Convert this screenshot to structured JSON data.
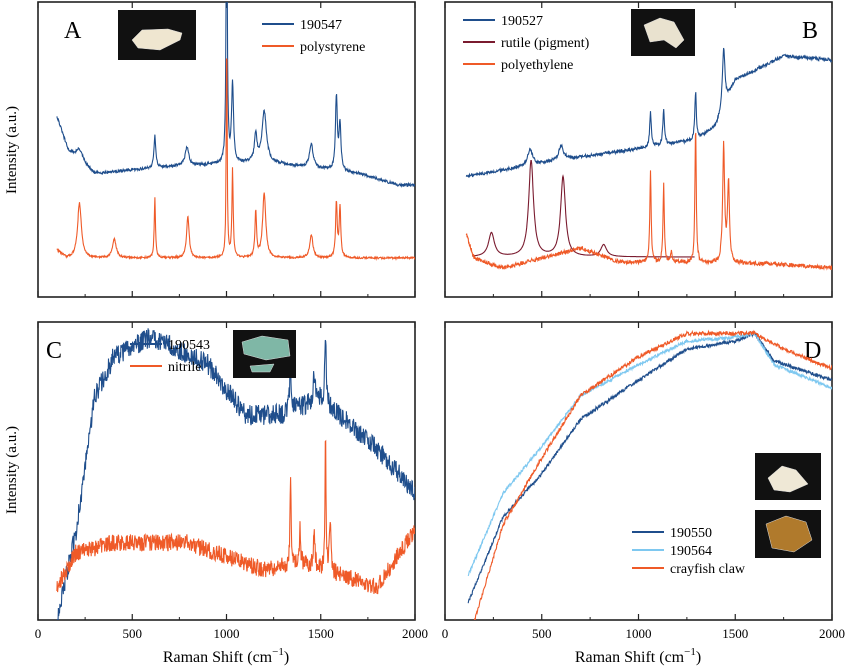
{
  "figure": {
    "shared_xlabel": "Raman Shift (cm",
    "shared_xlabel_sup": "−1",
    "shared_xlabel_end": ")",
    "shared_ylabel": "Intensity (a.u.)"
  },
  "chart_data": [
    {
      "type": "line",
      "panel": "A",
      "xlim": [
        0,
        2000
      ],
      "xticks": [
        0,
        500,
        1000,
        1500,
        2000
      ],
      "legend_position": "top-right",
      "inset_image": "white fragment photo",
      "series": [
        {
          "name": "190547",
          "color": "#1f4e8c",
          "baseline": 0.44,
          "bg": [
            [
              0,
              0.6
            ],
            [
              30,
              0.5
            ],
            [
              80,
              0.35
            ],
            [
              160,
              0.15
            ],
            [
              300,
              0.05
            ],
            [
              700,
              0.08
            ],
            [
              1200,
              0.1
            ],
            [
              1700,
              0.05
            ],
            [
              1910,
              0
            ]
          ],
          "peaks": [
            [
              220,
              0.05,
              20
            ],
            [
              620,
              0.14,
              6
            ],
            [
              790,
              0.08,
              12
            ],
            [
              1001,
              1.15,
              4
            ],
            [
              1032,
              0.35,
              6
            ],
            [
              1155,
              0.12,
              8
            ],
            [
              1200,
              0.22,
              14
            ],
            [
              1450,
              0.1,
              12
            ],
            [
              1583,
              0.32,
              6
            ],
            [
              1602,
              0.2,
              6
            ]
          ],
          "noise": 0.006
        },
        {
          "name": "polystyrene",
          "color": "#ef5a28",
          "baseline": 0.0,
          "bg": [
            [
              0,
              0.4
            ],
            [
              40,
              0.3
            ],
            [
              80,
              0.05
            ],
            [
              150,
              0
            ],
            [
              1910,
              0
            ]
          ],
          "peaks": [
            [
              220,
              0.24,
              12
            ],
            [
              405,
              0.08,
              12
            ],
            [
              620,
              0.26,
              4
            ],
            [
              795,
              0.18,
              8
            ],
            [
              1001,
              0.95,
              3
            ],
            [
              1032,
              0.38,
              4
            ],
            [
              1155,
              0.2,
              5
            ],
            [
              1200,
              0.28,
              10
            ],
            [
              1450,
              0.1,
              10
            ],
            [
              1583,
              0.24,
              5
            ],
            [
              1602,
              0.22,
              5
            ]
          ],
          "noise": 0.004
        }
      ]
    },
    {
      "type": "line",
      "panel": "B",
      "xlim": [
        0,
        2000
      ],
      "xticks": [
        0,
        500,
        1000,
        1500,
        2000
      ],
      "legend_position": "top-left",
      "inset_image": "white fragment photo",
      "series": [
        {
          "name": "190527",
          "color": "#1f4e8c",
          "baseline": 0.55,
          "bg": [
            [
              120,
              0
            ],
            [
              600,
              0.08
            ],
            [
              1300,
              0.18
            ],
            [
              1400,
              0.25
            ],
            [
              1500,
              0.48
            ],
            [
              1750,
              0.6
            ],
            [
              2000,
              0.58
            ]
          ],
          "peaks": [
            [
              440,
              0.08,
              15
            ],
            [
              600,
              0.07,
              15
            ],
            [
              1062,
              0.17,
              5
            ],
            [
              1130,
              0.18,
              5
            ],
            [
              1295,
              0.24,
              5
            ],
            [
              1440,
              0.3,
              8
            ]
          ],
          "noise": 0.008
        },
        {
          "name": "rutile (pigment)",
          "color": "#7a1b2f",
          "baseline": 0.05,
          "bg": [
            [
              120,
              0
            ],
            [
              1300,
              0
            ]
          ],
          "peaks": [
            [
              240,
              0.12,
              18
            ],
            [
              445,
              0.48,
              15
            ],
            [
              610,
              0.4,
              15
            ],
            [
              820,
              0.06,
              18
            ]
          ],
          "noise": 0.0
        },
        {
          "name": "polyethylene",
          "color": "#ef5a28",
          "baseline": 0.0,
          "bg": [
            [
              100,
              0.2
            ],
            [
              150,
              0.05
            ],
            [
              300,
              0
            ],
            [
              700,
              0.1
            ],
            [
              900,
              0.03
            ],
            [
              1700,
              0.02
            ],
            [
              2000,
              0
            ]
          ],
          "peaks": [
            [
              1062,
              0.45,
              4
            ],
            [
              1130,
              0.4,
              4
            ],
            [
              1170,
              0.06,
              5
            ],
            [
              1295,
              0.68,
              4
            ],
            [
              1440,
              0.58,
              6
            ],
            [
              1465,
              0.4,
              6
            ]
          ],
          "noise": 0.01
        }
      ]
    },
    {
      "type": "line",
      "panel": "C",
      "xlim": [
        0,
        2000
      ],
      "xticks": [
        0,
        500,
        1000,
        1500,
        2000
      ],
      "legend_position": "top-left",
      "inset_image": "blue-green fragment photo",
      "series": [
        {
          "name": "190543",
          "color": "#1f4e8c",
          "baseline": 0.0,
          "bg": [
            [
              100,
              -0.05
            ],
            [
              200,
              0.2
            ],
            [
              300,
              0.6
            ],
            [
              400,
              0.72
            ],
            [
              600,
              0.78
            ],
            [
              900,
              0.7
            ],
            [
              1100,
              0.55
            ],
            [
              1300,
              0.55
            ],
            [
              1500,
              0.6
            ],
            [
              1800,
              0.45
            ],
            [
              2000,
              0.32
            ]
          ],
          "peaks": [
            [
              1340,
              0.12,
              6
            ],
            [
              1465,
              0.08,
              6
            ],
            [
              1525,
              0.22,
              4
            ]
          ],
          "noise": 0.03
        },
        {
          "name": "nitrile",
          "color": "#ef5a28",
          "baseline": 0.0,
          "bg": [
            [
              100,
              0.05
            ],
            [
              200,
              0.15
            ],
            [
              400,
              0.18
            ],
            [
              800,
              0.18
            ],
            [
              1200,
              0.1
            ],
            [
              1400,
              0.12
            ],
            [
              1800,
              0.05
            ],
            [
              2000,
              0.22
            ]
          ],
          "peaks": [
            [
              1340,
              0.25,
              4
            ],
            [
              1390,
              0.1,
              4
            ],
            [
              1465,
              0.12,
              4
            ],
            [
              1525,
              0.4,
              3
            ],
            [
              1550,
              0.15,
              5
            ]
          ],
          "noise": 0.025
        }
      ]
    },
    {
      "type": "line",
      "panel": "D",
      "xlim": [
        0,
        2000
      ],
      "xticks": [
        0,
        500,
        1000,
        1500,
        2000
      ],
      "legend_position": "bottom-right",
      "inset_images": [
        "white fragment photo",
        "brown claw photo"
      ],
      "series": [
        {
          "name": "190550",
          "color": "#1f4e8c",
          "baseline": 0.0,
          "bg": [
            [
              120,
              0.05
            ],
            [
              300,
              0.27
            ],
            [
              500,
              0.38
            ],
            [
              700,
              0.52
            ],
            [
              1000,
              0.62
            ],
            [
              1250,
              0.7
            ],
            [
              1500,
              0.72
            ],
            [
              1600,
              0.74
            ],
            [
              1700,
              0.67
            ],
            [
              2000,
              0.62
            ]
          ],
          "peaks": [],
          "noise": 0.004
        },
        {
          "name": "190564",
          "color": "#7ec8f0",
          "baseline": 0.0,
          "bg": [
            [
              120,
              0.12
            ],
            [
              300,
              0.33
            ],
            [
              500,
              0.45
            ],
            [
              700,
              0.58
            ],
            [
              1000,
              0.66
            ],
            [
              1250,
              0.72
            ],
            [
              1500,
              0.73
            ],
            [
              1600,
              0.74
            ],
            [
              1700,
              0.66
            ],
            [
              2000,
              0.6
            ]
          ],
          "peaks": [],
          "noise": 0.004
        },
        {
          "name": "crayfish claw",
          "color": "#ef5a28",
          "baseline": 0.0,
          "bg": [
            [
              120,
              -0.05
            ],
            [
              300,
              0.25
            ],
            [
              500,
              0.42
            ],
            [
              700,
              0.58
            ],
            [
              1000,
              0.68
            ],
            [
              1250,
              0.74
            ],
            [
              1500,
              0.74
            ],
            [
              1600,
              0.74
            ],
            [
              1750,
              0.7
            ],
            [
              2000,
              0.65
            ]
          ],
          "peaks": [],
          "noise": 0.005
        }
      ]
    }
  ]
}
